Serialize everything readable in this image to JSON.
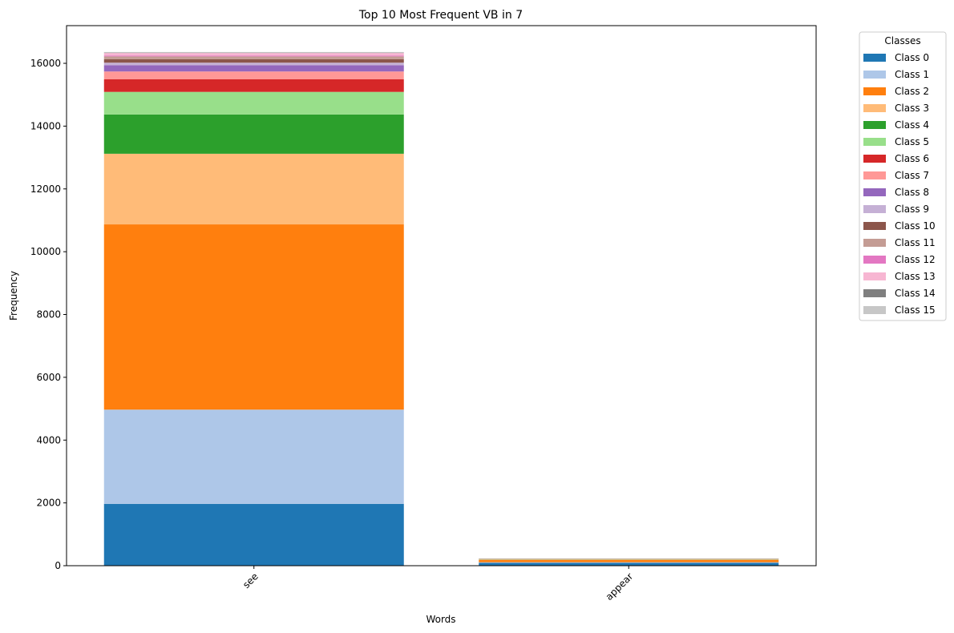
{
  "chart_data": {
    "type": "bar",
    "stacked": true,
    "title": "Top 10 Most Frequent VB in 7",
    "xlabel": "Words",
    "ylabel": "Frequency",
    "categories": [
      "see",
      "appear"
    ],
    "ylim": [
      0,
      17200
    ],
    "yticks": [
      0,
      2000,
      4000,
      6000,
      8000,
      10000,
      12000,
      14000,
      16000
    ],
    "grid": false,
    "legend": {
      "title": "Classes",
      "placement": "outside-top-right"
    },
    "series": [
      {
        "name": "Class 0",
        "color": "#1f77b4",
        "values": [
          1970,
          90
        ]
      },
      {
        "name": "Class 1",
        "color": "#aec7e8",
        "values": [
          3000,
          20
        ]
      },
      {
        "name": "Class 2",
        "color": "#ff7f0e",
        "values": [
          5900,
          70
        ]
      },
      {
        "name": "Class 3",
        "color": "#ffbb78",
        "values": [
          2250,
          20
        ]
      },
      {
        "name": "Class 4",
        "color": "#2ca02c",
        "values": [
          1250,
          10
        ]
      },
      {
        "name": "Class 5",
        "color": "#98df8a",
        "values": [
          720,
          5
        ]
      },
      {
        "name": "Class 6",
        "color": "#d62728",
        "values": [
          400,
          5
        ]
      },
      {
        "name": "Class 7",
        "color": "#ff9896",
        "values": [
          250,
          3
        ]
      },
      {
        "name": "Class 8",
        "color": "#9467bd",
        "values": [
          200,
          2
        ]
      },
      {
        "name": "Class 9",
        "color": "#c5b0d5",
        "values": [
          80,
          1
        ]
      },
      {
        "name": "Class 10",
        "color": "#8c564b",
        "values": [
          110,
          1
        ]
      },
      {
        "name": "Class 11",
        "color": "#c49c94",
        "values": [
          90,
          1
        ]
      },
      {
        "name": "Class 12",
        "color": "#e377c2",
        "values": [
          30,
          1
        ]
      },
      {
        "name": "Class 13",
        "color": "#f7b6d2",
        "values": [
          80,
          1
        ]
      },
      {
        "name": "Class 14",
        "color": "#7f7f7f",
        "values": [
          10,
          0
        ]
      },
      {
        "name": "Class 15",
        "color": "#c7c7c7",
        "values": [
          20,
          0
        ]
      }
    ]
  }
}
